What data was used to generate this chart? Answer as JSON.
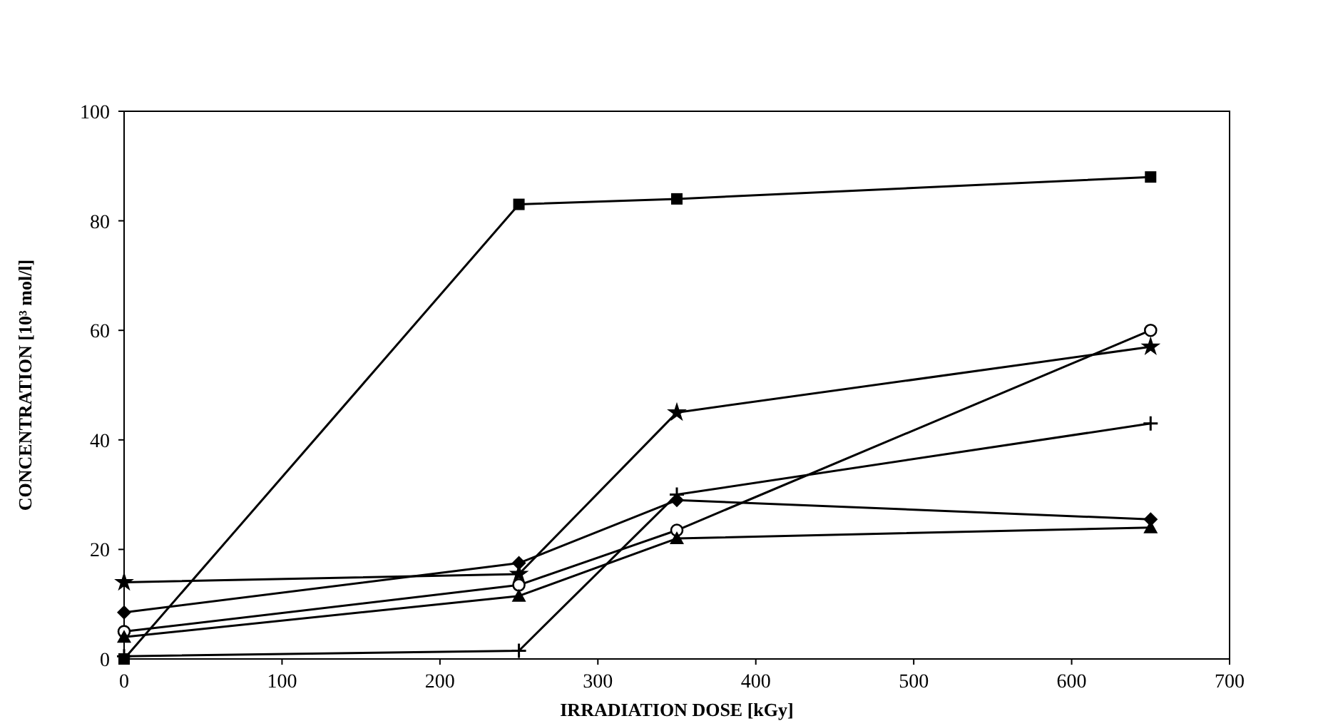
{
  "chart_data": {
    "type": "line",
    "xlabel": "IRRADIATION DOSE [kGy]",
    "ylabel": "CONCENTRATION [10³ mol/l]",
    "x": [
      0,
      250,
      350,
      650
    ],
    "xlim": [
      0,
      700
    ],
    "xticks": [
      0,
      100,
      200,
      300,
      400,
      500,
      600,
      700
    ],
    "ylim": [
      0,
      100
    ],
    "yticks": [
      0,
      20,
      40,
      60,
      80,
      100
    ],
    "grid": false,
    "line_style": "solid",
    "series": [
      {
        "color": "#000000",
        "marker": "square",
        "values": [
          0,
          83,
          84,
          88
        ]
      },
      {
        "color": "#000000",
        "marker": "circle",
        "values": [
          5,
          13.5,
          23.5,
          60
        ]
      },
      {
        "color": "#000000",
        "marker": "star",
        "values": [
          14,
          15.5,
          45,
          57
        ]
      },
      {
        "color": "#000000",
        "marker": "cross",
        "values": [
          0.5,
          1.5,
          30,
          43
        ]
      },
      {
        "color": "#000000",
        "marker": "diamond",
        "values": [
          8.5,
          17.5,
          29,
          25.5
        ]
      },
      {
        "color": "#000000",
        "marker": "triangle",
        "values": [
          4,
          11.5,
          22,
          24
        ]
      }
    ]
  }
}
